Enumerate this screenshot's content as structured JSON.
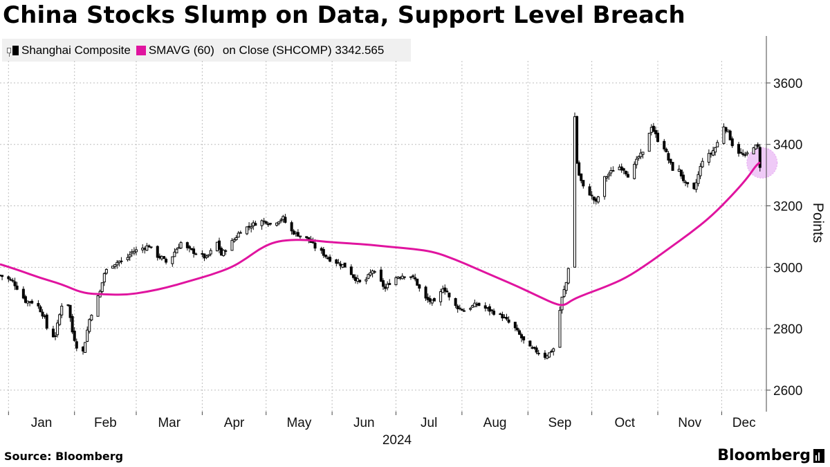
{
  "header": {
    "title": "China Stocks Slump on Data, Support Level Breach"
  },
  "legend": {
    "series1_label": "Shanghai Composite",
    "series2_label": "SMAVG (60)",
    "series2_suffix": "on Close (SHCOMP) 3342.565"
  },
  "footer": {
    "source": "Source: Bloomberg",
    "brand": "Bloomberg"
  },
  "colors": {
    "candle": "#000000",
    "moving_average": "#e0149f",
    "highlight": "#e5a6f1",
    "grid": "#bdbdbd"
  },
  "chart_data": {
    "type": "candlestick+line",
    "title": "China Stocks Slump on Data, Support Level Breach",
    "xlabel": "2024",
    "ylabel": "Points",
    "ylim": [
      2530,
      3780
    ],
    "y_ticks": [
      2600,
      2800,
      3000,
      3200,
      3400,
      3600
    ],
    "x_start_day": -4,
    "x_end_day": 356,
    "x_ticks": [
      {
        "label": "Jan",
        "day": 0
      },
      {
        "label": "Feb",
        "day": 31
      },
      {
        "label": "Mar",
        "day": 60
      },
      {
        "label": "Apr",
        "day": 91
      },
      {
        "label": "May",
        "day": 121
      },
      {
        "label": "Jun",
        "day": 152
      },
      {
        "label": "Jul",
        "day": 182
      },
      {
        "label": "Aug",
        "day": 213
      },
      {
        "label": "Sep",
        "day": 244
      },
      {
        "label": "Oct",
        "day": 274
      },
      {
        "label": "Nov",
        "day": 305
      },
      {
        "label": "Dec",
        "day": 335
      }
    ],
    "year_label": "2024",
    "candles_close_anchors": [
      [
        -4,
        2974
      ],
      [
        2,
        2955
      ],
      [
        8,
        2890
      ],
      [
        13,
        2885
      ],
      [
        17,
        2835
      ],
      [
        19,
        2770
      ],
      [
        22,
        2780
      ],
      [
        26,
        2910
      ],
      [
        28,
        2880
      ],
      [
        30,
        2790
      ],
      [
        33,
        2720
      ],
      [
        34,
        2690
      ],
      [
        36,
        2760
      ],
      [
        38,
        2830
      ],
      [
        40,
        2870
      ],
      [
        43,
        2920
      ],
      [
        45,
        2980
      ],
      [
        47,
        3000
      ],
      [
        49,
        3010
      ],
      [
        52,
        3020
      ],
      [
        54,
        3015
      ],
      [
        58,
        3050
      ],
      [
        62,
        3060
      ],
      [
        66,
        3070
      ],
      [
        69,
        3040
      ],
      [
        72,
        3030
      ],
      [
        75,
        3010
      ],
      [
        78,
        3050
      ],
      [
        81,
        3080
      ],
      [
        84,
        3060
      ],
      [
        87,
        3050
      ],
      [
        90,
        3040
      ],
      [
        93,
        3030
      ],
      [
        96,
        3060
      ],
      [
        98,
        3080
      ],
      [
        100,
        3040
      ],
      [
        103,
        3070
      ],
      [
        106,
        3090
      ],
      [
        109,
        3120
      ],
      [
        112,
        3130
      ],
      [
        115,
        3140
      ],
      [
        118,
        3150
      ],
      [
        121,
        3150
      ],
      [
        123,
        3140
      ],
      [
        126,
        3150
      ],
      [
        129,
        3160
      ],
      [
        132,
        3120
      ],
      [
        135,
        3110
      ],
      [
        138,
        3100
      ],
      [
        141,
        3090
      ],
      [
        144,
        3065
      ],
      [
        147,
        3050
      ],
      [
        150,
        3030
      ],
      [
        153,
        3020
      ],
      [
        156,
        3010
      ],
      [
        159,
        3000
      ],
      [
        162,
        2970
      ],
      [
        165,
        2950
      ],
      [
        168,
        2960
      ],
      [
        171,
        2990
      ],
      [
        174,
        2960
      ],
      [
        177,
        2930
      ],
      [
        180,
        2960
      ],
      [
        183,
        2970
      ],
      [
        186,
        2975
      ],
      [
        189,
        2970
      ],
      [
        191,
        2960
      ],
      [
        193,
        2930
      ],
      [
        195,
        2900
      ],
      [
        198,
        2890
      ],
      [
        201,
        2880
      ],
      [
        204,
        2935
      ],
      [
        206,
        2920
      ],
      [
        208,
        2880
      ],
      [
        211,
        2870
      ],
      [
        214,
        2860
      ],
      [
        217,
        2870
      ],
      [
        220,
        2880
      ],
      [
        223,
        2870
      ],
      [
        226,
        2860
      ],
      [
        229,
        2850
      ],
      [
        232,
        2840
      ],
      [
        235,
        2820
      ],
      [
        238,
        2800
      ],
      [
        241,
        2770
      ],
      [
        244,
        2740
      ],
      [
        247,
        2730
      ],
      [
        250,
        2720
      ],
      [
        252,
        2710
      ],
      [
        254,
        2720
      ],
      [
        256,
        2735
      ],
      [
        258,
        2770
      ],
      [
        259,
        2860
      ],
      [
        260,
        2900
      ],
      [
        262,
        2950
      ],
      [
        263,
        3000
      ],
      [
        264,
        3130
      ],
      [
        265,
        3330
      ],
      [
        266,
        3490
      ],
      [
        267,
        3340
      ],
      [
        268,
        3300
      ],
      [
        270,
        3260
      ],
      [
        272,
        3250
      ],
      [
        274,
        3230
      ],
      [
        276,
        3210
      ],
      [
        278,
        3250
      ],
      [
        280,
        3290
      ],
      [
        283,
        3310
      ],
      [
        286,
        3330
      ],
      [
        289,
        3320
      ],
      [
        292,
        3290
      ],
      [
        294,
        3330
      ],
      [
        296,
        3360
      ],
      [
        298,
        3370
      ],
      [
        300,
        3420
      ],
      [
        302,
        3460
      ],
      [
        304,
        3430
      ],
      [
        306,
        3400
      ],
      [
        308,
        3390
      ],
      [
        310,
        3350
      ],
      [
        312,
        3320
      ],
      [
        314,
        3330
      ],
      [
        316,
        3300
      ],
      [
        318,
        3270
      ],
      [
        320,
        3260
      ],
      [
        322,
        3250
      ],
      [
        324,
        3300
      ],
      [
        326,
        3350
      ],
      [
        328,
        3360
      ],
      [
        330,
        3370
      ],
      [
        332,
        3390
      ],
      [
        334,
        3420
      ],
      [
        336,
        3460
      ],
      [
        338,
        3440
      ],
      [
        340,
        3400
      ],
      [
        342,
        3380
      ],
      [
        344,
        3370
      ],
      [
        346,
        3360
      ],
      [
        348,
        3380
      ],
      [
        350,
        3395
      ],
      [
        352,
        3390
      ],
      [
        353,
        3330
      ]
    ],
    "moving_average": {
      "name": "SMAVG (60)",
      "last_value": 3342.565,
      "points": [
        [
          -4,
          3010
        ],
        [
          5,
          2990
        ],
        [
          15,
          2965
        ],
        [
          25,
          2945
        ],
        [
          35,
          2915
        ],
        [
          45,
          2912
        ],
        [
          55,
          2910
        ],
        [
          65,
          2920
        ],
        [
          75,
          2935
        ],
        [
          85,
          2955
        ],
        [
          95,
          2975
        ],
        [
          105,
          3000
        ],
        [
          112,
          3030
        ],
        [
          118,
          3060
        ],
        [
          124,
          3080
        ],
        [
          130,
          3088
        ],
        [
          140,
          3090
        ],
        [
          150,
          3082
        ],
        [
          160,
          3078
        ],
        [
          170,
          3073
        ],
        [
          180,
          3066
        ],
        [
          190,
          3060
        ],
        [
          200,
          3050
        ],
        [
          210,
          3025
        ],
        [
          220,
          2995
        ],
        [
          230,
          2965
        ],
        [
          240,
          2935
        ],
        [
          250,
          2902
        ],
        [
          257,
          2880
        ],
        [
          261,
          2875
        ],
        [
          265,
          2895
        ],
        [
          272,
          2915
        ],
        [
          280,
          2935
        ],
        [
          290,
          2965
        ],
        [
          300,
          3010
        ],
        [
          310,
          3060
        ],
        [
          320,
          3110
        ],
        [
          330,
          3165
        ],
        [
          340,
          3235
        ],
        [
          347,
          3290
        ],
        [
          351,
          3330
        ],
        [
          353,
          3342
        ]
      ]
    },
    "highlight": {
      "day": 353,
      "value": 3340
    }
  }
}
